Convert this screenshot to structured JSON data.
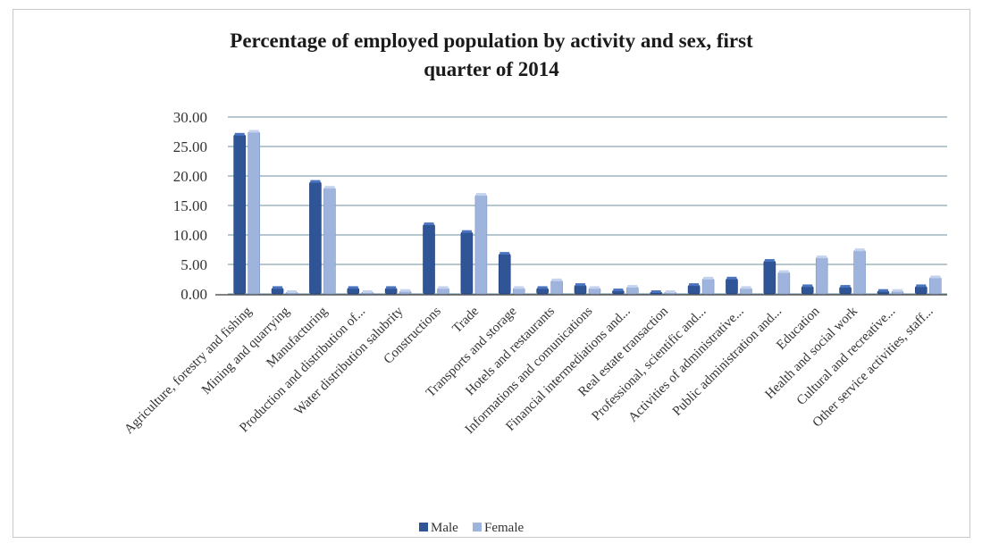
{
  "colors": {
    "male": "#2f5597",
    "female": "#9fb4dc",
    "grid": "#6f8fa0",
    "axis": "#595959"
  },
  "chart_data": {
    "type": "bar",
    "title": "Percentage of employed population by activity and sex, first quarter of 2014",
    "title_lines": [
      "Percentage of employed population by activity and sex, first",
      "quarter of 2014"
    ],
    "xlabel": "",
    "ylabel": "",
    "ylim": [
      0,
      30
    ],
    "yticks": [
      "30.00",
      "25.00",
      "20.00",
      "15.00",
      "10.00",
      "5.00",
      "0.00"
    ],
    "grid": true,
    "legend_position": "bottom",
    "categories": [
      "Agriculture, forestry and fishing",
      "Mining and quarrying",
      "Manufacturing",
      "Production and distribution of...",
      "Water distribution salubrity",
      "Constructions",
      "Trade",
      "Transports and storage",
      "Hotels and restaurants",
      "Informations and comunications",
      "Financial intermediations and...",
      "Real estate transaction",
      "Professional, scientific and...",
      "Activities of administrative...",
      "Public administration and...",
      "Education",
      "Health and social work",
      "Cultural and recreative...",
      "Other service activities, staff..."
    ],
    "series": [
      {
        "name": "Male",
        "values": [
          27.0,
          1.0,
          19.0,
          1.0,
          1.0,
          11.8,
          10.5,
          6.8,
          1.0,
          1.5,
          0.6,
          0.2,
          1.5,
          2.6,
          5.6,
          1.3,
          1.2,
          0.5,
          1.3
        ]
      },
      {
        "name": "Female",
        "values": [
          27.5,
          0.2,
          18.0,
          0.3,
          0.5,
          1.0,
          16.8,
          1.0,
          2.3,
          1.0,
          1.2,
          0.3,
          2.6,
          1.0,
          3.7,
          6.2,
          7.4,
          0.5,
          2.8
        ]
      }
    ]
  }
}
